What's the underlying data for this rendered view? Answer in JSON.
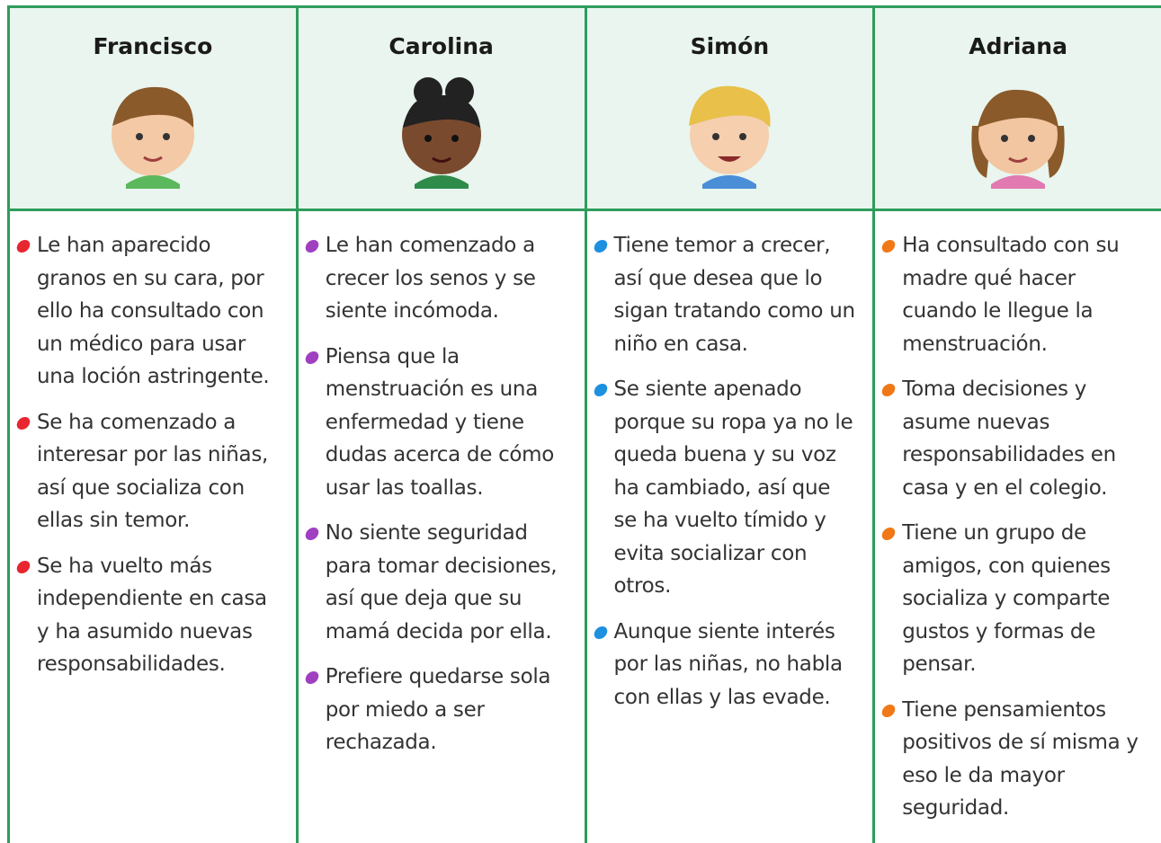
{
  "columns": [
    {
      "name": "Francisco",
      "items": [
        "Le han aparecido granos en su cara, por ello ha consultado con un médico para usar una loción astringente.",
        "Se ha comenzado a interesar por las niñas, así que socializa con ellas sin temor.",
        "Se ha vuelto más independiente en casa y ha asumido nuevas responsabilidades."
      ]
    },
    {
      "name": "Carolina",
      "items": [
        "Le han comenzado a crecer los senos y se siente incómoda.",
        "Piensa que la menstruación es una enfermedad y tiene dudas acerca de cómo usar las toallas.",
        "No siente seguridad para tomar decisiones, así que deja que su mamá decida por ella.",
        "Prefiere quedarse sola por miedo a ser rechazada."
      ]
    },
    {
      "name": "Simón",
      "items": [
        "Tiene temor a crecer, así que desea que lo sigan tratando como un niño en casa.",
        "Se siente apenado porque su ropa ya no le queda buena y su voz ha cambiado, así que se ha vuelto tímido y evita socializar con otros.",
        "Aunque siente interés por las niñas, no habla con ellas y las evade."
      ]
    },
    {
      "name": "Adriana",
      "items": [
        "Ha consultado con su madre qué hacer cuando le llegue la menstruación.",
        "Toma decisiones y asume nuevas responsabilidades en casa y en el colegio.",
        "Tiene un grupo de amigos, con quienes socializa y comparte gustos y formas de pensar.",
        "Tiene pensamientos positivos de sí misma y eso le da mayor seguridad."
      ]
    }
  ]
}
